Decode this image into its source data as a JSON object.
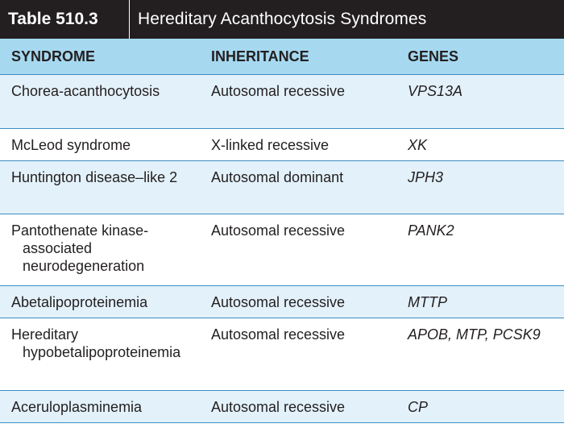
{
  "table": {
    "number": "Table 510.3",
    "title": "Hereditary Acanthocytosis Syndromes",
    "headers": [
      "SYNDROME",
      "INHERITANCE",
      "GENES"
    ],
    "rows": [
      {
        "syndrome": "Chorea-acanthocytosis",
        "inheritance": "Autosomal recessive",
        "genes": "VPS13A"
      },
      {
        "syndrome": "McLeod syndrome",
        "inheritance": "X-linked recessive",
        "genes": "XK"
      },
      {
        "syndrome": "Huntington disease–like 2",
        "inheritance": "Autosomal dominant",
        "genes": "JPH3"
      },
      {
        "syndrome": "Pantothenate kinase-associated neurodegeneration",
        "inheritance": "Autosomal recessive",
        "genes": "PANK2"
      },
      {
        "syndrome": "Abetalipoproteinemia",
        "inheritance": "Autosomal recessive",
        "genes": "MTTP"
      },
      {
        "syndrome": "Hereditary hypobetalipoproteinemia",
        "inheritance": "Autosomal recessive",
        "genes": "APOB, MTP, PCSK9"
      },
      {
        "syndrome": "Aceruloplasminemia",
        "inheritance": "Autosomal recessive",
        "genes": "CP"
      }
    ]
  },
  "colors": {
    "title_bar": "#231f20",
    "header_bg": "#a6d9f0",
    "shaded_row_bg": "#e3f1fa",
    "rule": "#3b8ec2"
  }
}
